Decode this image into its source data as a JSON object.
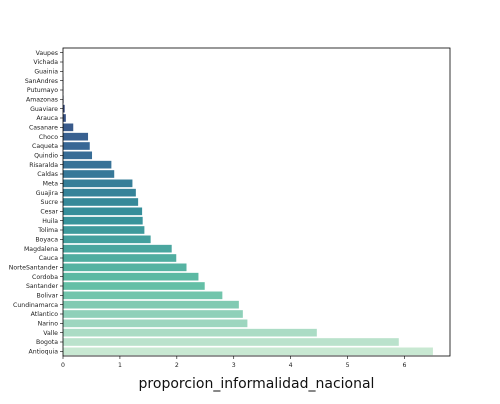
{
  "chart_data": {
    "type": "bar",
    "orientation": "horizontal",
    "categories": [
      "Vaupes",
      "Vichada",
      "Guainia",
      "SanAndres",
      "Putumayo",
      "Amazonas",
      "Guaviare",
      "Arauca",
      "Casanare",
      "Choco",
      "Caqueta",
      "Quindio",
      "Risaralda",
      "Caldas",
      "Meta",
      "Guajira",
      "Sucre",
      "Cesar",
      "Huila",
      "Tolima",
      "Boyaca",
      "Magdalena",
      "Cauca",
      "NorteSantander",
      "Cordoba",
      "Santander",
      "Bolivar",
      "Cundinamarca",
      "Atlantico",
      "Narino",
      "Valle",
      "Bogota",
      "Antioquia"
    ],
    "values": [
      0.0,
      0.0,
      0.0,
      0.005,
      0.005,
      0.01,
      0.03,
      0.05,
      0.18,
      0.44,
      0.47,
      0.51,
      0.85,
      0.9,
      1.22,
      1.28,
      1.32,
      1.39,
      1.4,
      1.43,
      1.54,
      1.91,
      1.99,
      2.17,
      2.38,
      2.49,
      2.8,
      3.09,
      3.16,
      3.24,
      4.46,
      5.9,
      6.5
    ],
    "xlabel": "proporcion_informalidad_nacional",
    "ylabel": "",
    "title": "",
    "xlim": [
      0,
      6.8
    ],
    "xticks": [
      "0",
      "1",
      "2",
      "3",
      "4",
      "5",
      "6"
    ],
    "palette": "mako_r",
    "grid": false,
    "legend": "none"
  }
}
